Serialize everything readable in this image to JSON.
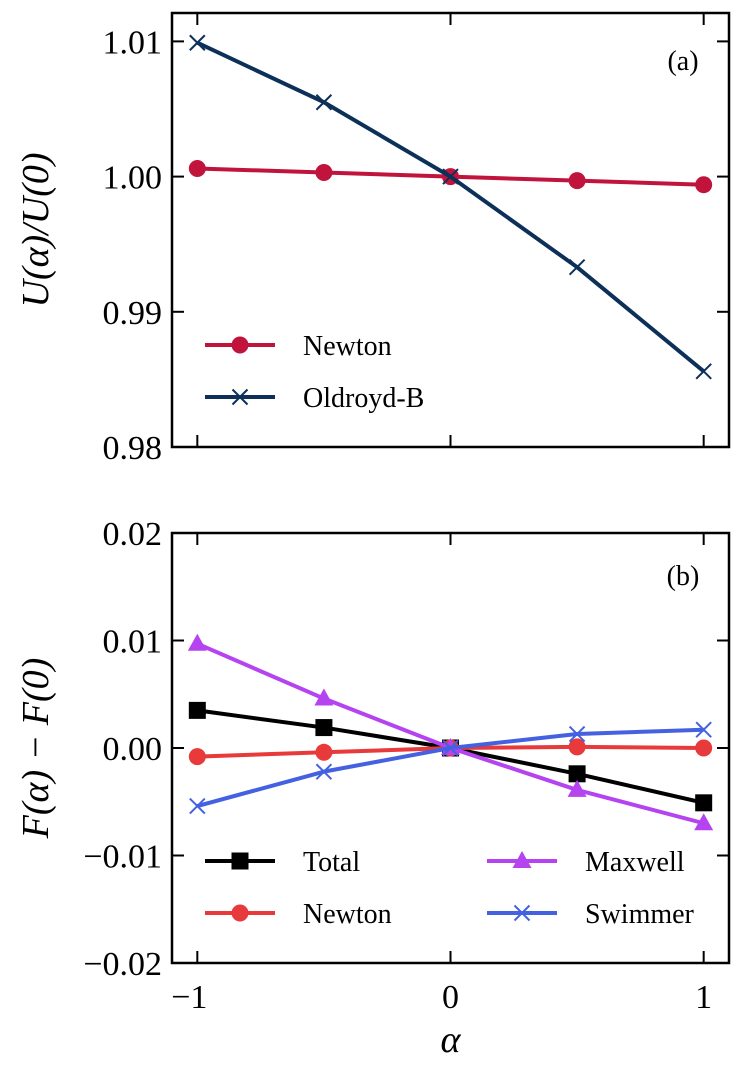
{
  "chart_data": [
    {
      "type": "line",
      "panel_label": "(a)",
      "ylabel": "U(α)/U(0)",
      "xlabel": "",
      "xlim": [
        -1.1,
        1.1
      ],
      "ylim": [
        0.98,
        1.0121
      ],
      "x_ticks": [
        -1,
        0,
        1
      ],
      "y_ticks": [
        0.98,
        0.99,
        1.0,
        1.01
      ],
      "y_tick_labels": [
        "0.98",
        "0.99",
        "1.00",
        "1.01"
      ],
      "x": [
        -1,
        -0.5,
        0,
        0.5,
        1
      ],
      "series": [
        {
          "name": "Newton",
          "values": [
            1.0006,
            1.0003,
            1.0,
            0.9997,
            0.9994
          ],
          "color": "#c0143c",
          "marker": "circle"
        },
        {
          "name": "Oldroyd-B",
          "values": [
            1.0099,
            1.0055,
            1.0,
            0.9933,
            0.9856
          ],
          "color": "#0d3059",
          "marker": "x"
        }
      ],
      "legend_placement": "lower-left"
    },
    {
      "type": "line",
      "panel_label": "(b)",
      "ylabel": "F(α) − F(0)",
      "xlabel": "α",
      "xlim": [
        -1.1,
        1.1
      ],
      "ylim": [
        -0.02,
        0.02
      ],
      "x_ticks": [
        -1,
        0,
        1
      ],
      "x_tick_labels": [
        "−1",
        "0",
        "1"
      ],
      "y_ticks": [
        -0.02,
        -0.01,
        0.0,
        0.01,
        0.02
      ],
      "y_tick_labels": [
        "−0.02",
        "−0.01",
        "0.00",
        "0.01",
        "0.02"
      ],
      "x": [
        -1,
        -0.5,
        0,
        0.5,
        1
      ],
      "series": [
        {
          "name": "Total",
          "values": [
            0.0035,
            0.0019,
            0.0,
            -0.0024,
            -0.0051
          ],
          "color": "#000000",
          "marker": "square"
        },
        {
          "name": "Newton",
          "values": [
            -0.0008,
            -0.0004,
            0.0,
            0.0001,
            0.0
          ],
          "color": "#e8393b",
          "marker": "circle"
        },
        {
          "name": "Maxwell",
          "values": [
            0.0097,
            0.0046,
            0.0,
            -0.0039,
            -0.007
          ],
          "color": "#b544f0",
          "marker": "triangle"
        },
        {
          "name": "Swimmer",
          "values": [
            -0.0054,
            -0.0022,
            0.0,
            0.0013,
            0.0017
          ],
          "color": "#4361e0",
          "marker": "x"
        }
      ],
      "legend_placement": "lower",
      "legend_columns": 2
    }
  ]
}
